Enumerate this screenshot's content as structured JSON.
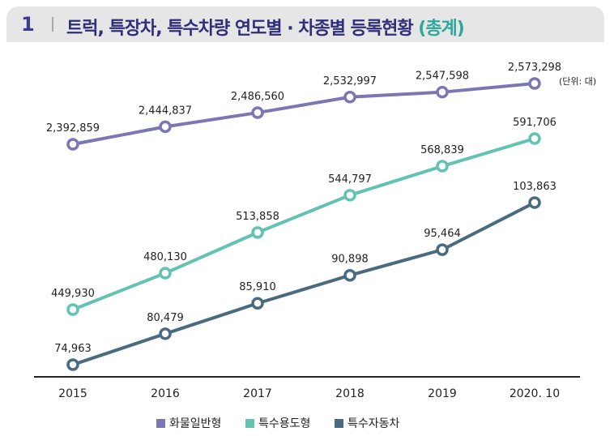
{
  "header": {
    "number": "1",
    "title_main": "트럭, 특장차, 특수차량 연도별 · 차종별 등록현황",
    "title_accent": "(총계)"
  },
  "unit_label": "(단위: 대)",
  "colors": {
    "series1": "#7b76b4",
    "series2": "#62c3b2",
    "series3": "#486b80"
  },
  "chart_data": {
    "type": "line",
    "categories": [
      "2015",
      "2016",
      "2017",
      "2018",
      "2019",
      "2020. 10"
    ],
    "series": [
      {
        "name": "화물일반형",
        "values": [
          2392859,
          2444837,
          2486560,
          2532997,
          2547598,
          2573298
        ],
        "labels": [
          "2,392,859",
          "2,444,837",
          "2,486,560",
          "2,532,997",
          "2,547,598",
          "2,573,298"
        ]
      },
      {
        "name": "특수용도형",
        "values": [
          449930,
          480130,
          513858,
          544797,
          568839,
          591706
        ],
        "labels": [
          "449,930",
          "480,130",
          "513,858",
          "544,797",
          "568,839",
          "591,706"
        ]
      },
      {
        "name": "특수자동차",
        "values": [
          74963,
          80479,
          85910,
          90898,
          95464,
          103863
        ],
        "labels": [
          "74,963",
          "80,479",
          "85,910",
          "90,898",
          "95,464",
          "103,863"
        ]
      }
    ],
    "grid": false,
    "legend_position": "bottom"
  }
}
